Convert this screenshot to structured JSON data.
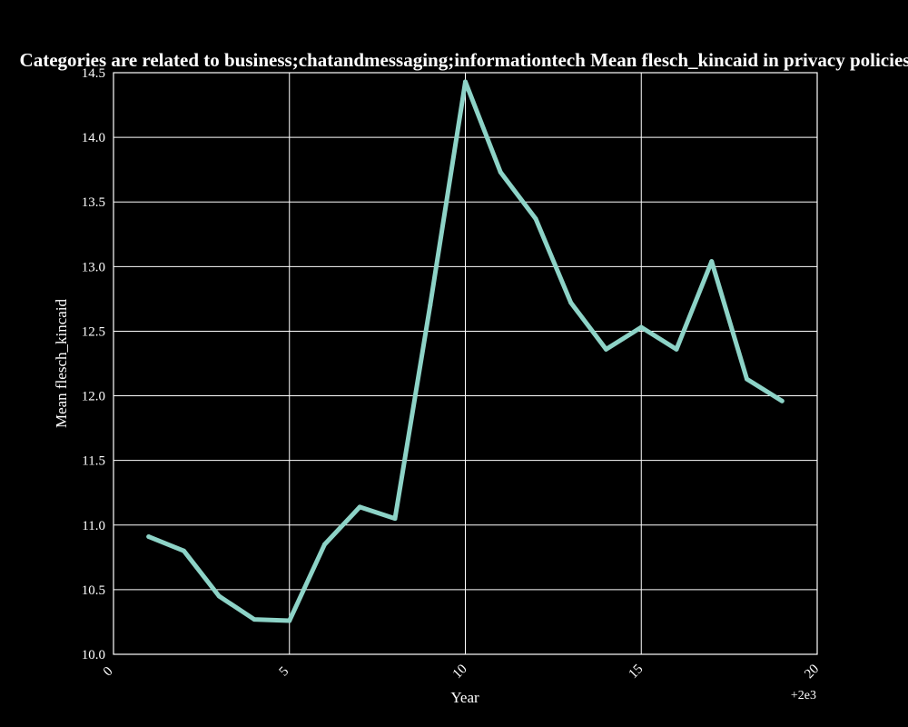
{
  "chart_data": {
    "type": "line",
    "title": "Categories are related to business;chatandmessaging;informationtech Mean flesch_kincaid in privacy policies",
    "xlabel": "Year",
    "ylabel": "Mean flesch_kincaid",
    "x_offset_label": "+2e3",
    "xlim": [
      0,
      20
    ],
    "ylim": [
      10.0,
      14.5
    ],
    "x_ticks": [
      0,
      5,
      10,
      15,
      20
    ],
    "x_tick_labels": [
      "0",
      "5",
      "10",
      "15",
      "20"
    ],
    "y_ticks": [
      10.0,
      10.5,
      11.0,
      11.5,
      12.0,
      12.5,
      13.0,
      13.5,
      14.0,
      14.5
    ],
    "y_tick_labels": [
      "10.0",
      "10.5",
      "11.0",
      "11.5",
      "12.0",
      "12.5",
      "13.0",
      "13.5",
      "14.0",
      "14.5"
    ],
    "grid": true,
    "line_color": "#8dd3c7",
    "background": "#000000",
    "foreground": "#ffffff",
    "series": [
      {
        "x": [
          2001,
          2002,
          2003,
          2004,
          2005,
          2006,
          2007,
          2008,
          2009,
          2010,
          2011,
          2012,
          2013,
          2014,
          2015,
          2016,
          2017,
          2018,
          2019
        ],
        "values": [
          10.91,
          10.8,
          10.45,
          10.27,
          10.26,
          10.85,
          11.14,
          11.05,
          12.7,
          14.43,
          13.73,
          13.37,
          12.72,
          12.36,
          12.53,
          12.36,
          13.04,
          12.13,
          11.96
        ]
      }
    ]
  }
}
